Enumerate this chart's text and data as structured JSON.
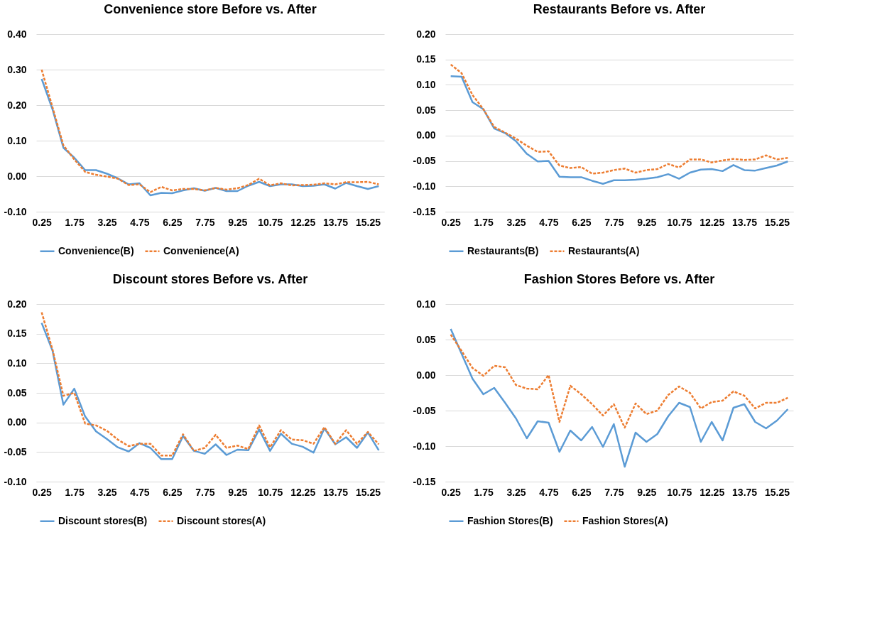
{
  "chart_data": [
    {
      "type": "line",
      "title": "Convenience store Before vs. After",
      "categories": [
        "0.25",
        null,
        null,
        "1.75",
        null,
        null,
        "3.25",
        null,
        null,
        "4.75",
        null,
        null,
        "6.25",
        null,
        null,
        "7.75",
        null,
        null,
        "9.25",
        null,
        null,
        "10.75",
        null,
        null,
        "12.25",
        null,
        null,
        "13.75",
        null,
        null,
        "15.25",
        null
      ],
      "ylim": [
        -0.1,
        0.4
      ],
      "yticks": [
        {
          "value": -0.1,
          "label": "-0.10"
        },
        {
          "value": 0,
          "label": "0.00"
        },
        {
          "value": 0.1,
          "label": "0.10"
        },
        {
          "value": 0.2,
          "label": "0.20"
        },
        {
          "value": 0.3,
          "label": "0.30"
        },
        {
          "value": 0.4,
          "label": "0.40"
        }
      ],
      "grid": "y",
      "legend": "bottom",
      "marker": "none",
      "series": [
        {
          "name": "Convenience(B)",
          "color": "#5b9bd5",
          "line_style": "solid",
          "values": [
            0.274,
            0.188,
            0.08,
            0.052,
            0.017,
            0.017,
            0.007,
            -0.006,
            -0.023,
            -0.02,
            -0.054,
            -0.047,
            -0.048,
            -0.04,
            -0.034,
            -0.041,
            -0.033,
            -0.042,
            -0.042,
            -0.027,
            -0.016,
            -0.028,
            -0.023,
            -0.023,
            -0.028,
            -0.027,
            -0.023,
            -0.035,
            -0.019,
            -0.028,
            -0.036,
            -0.028
          ]
        },
        {
          "name": "Convenience(A)",
          "color": "#ed7d31",
          "line_style": "dashed",
          "values": [
            0.3,
            0.194,
            0.087,
            0.047,
            0.012,
            0.004,
            -0.001,
            -0.007,
            -0.025,
            -0.023,
            -0.045,
            -0.03,
            -0.04,
            -0.036,
            -0.036,
            -0.04,
            -0.033,
            -0.038,
            -0.034,
            -0.025,
            -0.007,
            -0.026,
            -0.02,
            -0.026,
            -0.025,
            -0.024,
            -0.02,
            -0.023,
            -0.017,
            -0.017,
            -0.016,
            -0.023
          ]
        }
      ]
    },
    {
      "type": "line",
      "title": "Restaurants Before vs. After",
      "categories": [
        "0.25",
        null,
        null,
        "1.75",
        null,
        null,
        "3.25",
        null,
        null,
        "4.75",
        null,
        null,
        "6.25",
        null,
        null,
        "7.75",
        null,
        null,
        "9.25",
        null,
        null,
        "10.75",
        null,
        null,
        "12.25",
        null,
        null,
        "13.75",
        null,
        null,
        "15.25",
        null
      ],
      "ylim": [
        -0.15,
        0.2
      ],
      "yticks": [
        {
          "value": -0.15,
          "label": "-0.15"
        },
        {
          "value": -0.1,
          "label": "-0.10"
        },
        {
          "value": -0.05,
          "label": "-0.05"
        },
        {
          "value": 0,
          "label": "0.00"
        },
        {
          "value": 0.05,
          "label": "0.05"
        },
        {
          "value": 0.1,
          "label": "0.10"
        },
        {
          "value": 0.15,
          "label": "0.15"
        },
        {
          "value": 0.2,
          "label": "0.20"
        }
      ],
      "grid": "y",
      "legend": "bottom",
      "marker": "none",
      "series": [
        {
          "name": "Restaurants(B)",
          "color": "#5b9bd5",
          "line_style": "solid",
          "values": [
            0.117,
            0.116,
            0.066,
            0.052,
            0.014,
            0.005,
            -0.011,
            -0.036,
            -0.051,
            -0.05,
            -0.081,
            -0.082,
            -0.082,
            -0.089,
            -0.095,
            -0.088,
            -0.088,
            -0.087,
            -0.085,
            -0.082,
            -0.076,
            -0.085,
            -0.073,
            -0.067,
            -0.066,
            -0.07,
            -0.058,
            -0.068,
            -0.069,
            -0.064,
            -0.059,
            -0.051
          ]
        },
        {
          "name": "Restaurants(A)",
          "color": "#ed7d31",
          "line_style": "dashed",
          "values": [
            0.14,
            0.123,
            0.08,
            0.052,
            0.017,
            0.006,
            -0.006,
            -0.02,
            -0.032,
            -0.031,
            -0.059,
            -0.064,
            -0.062,
            -0.075,
            -0.073,
            -0.068,
            -0.065,
            -0.073,
            -0.068,
            -0.066,
            -0.056,
            -0.063,
            -0.047,
            -0.047,
            -0.053,
            -0.049,
            -0.046,
            -0.048,
            -0.047,
            -0.039,
            -0.047,
            -0.044
          ]
        }
      ]
    },
    {
      "type": "line",
      "title": "Discount stores Before vs. After",
      "categories": [
        "0.25",
        null,
        null,
        "1.75",
        null,
        null,
        "3.25",
        null,
        null,
        "4.75",
        null,
        null,
        "6.25",
        null,
        null,
        "7.75",
        null,
        null,
        "9.25",
        null,
        null,
        "10.75",
        null,
        null,
        "12.25",
        null,
        null,
        "13.75",
        null,
        null,
        "15.25",
        null
      ],
      "ylim": [
        -0.1,
        0.2
      ],
      "yticks": [
        {
          "value": -0.1,
          "label": "-0.10"
        },
        {
          "value": -0.05,
          "label": "-0.05"
        },
        {
          "value": 0,
          "label": "0.00"
        },
        {
          "value": 0.05,
          "label": "0.05"
        },
        {
          "value": 0.1,
          "label": "0.10"
        },
        {
          "value": 0.15,
          "label": "0.15"
        },
        {
          "value": 0.2,
          "label": "0.20"
        }
      ],
      "grid": "y",
      "legend": "bottom",
      "marker": "none",
      "series": [
        {
          "name": "Discount stores(B)",
          "color": "#5b9bd5",
          "line_style": "solid",
          "values": [
            0.168,
            0.121,
            0.03,
            0.057,
            0.01,
            -0.015,
            -0.028,
            -0.042,
            -0.049,
            -0.035,
            -0.043,
            -0.062,
            -0.062,
            -0.023,
            -0.048,
            -0.053,
            -0.037,
            -0.055,
            -0.046,
            -0.047,
            -0.012,
            -0.048,
            -0.019,
            -0.036,
            -0.041,
            -0.051,
            -0.01,
            -0.037,
            -0.025,
            -0.043,
            -0.017,
            -0.047
          ]
        },
        {
          "name": "Discount stores(A)",
          "color": "#ed7d31",
          "line_style": "dashed",
          "values": [
            0.186,
            0.123,
            0.045,
            0.05,
            -0.002,
            -0.005,
            -0.014,
            -0.029,
            -0.04,
            -0.036,
            -0.036,
            -0.056,
            -0.056,
            -0.02,
            -0.048,
            -0.043,
            -0.021,
            -0.043,
            -0.039,
            -0.045,
            -0.005,
            -0.042,
            -0.013,
            -0.029,
            -0.03,
            -0.036,
            -0.008,
            -0.036,
            -0.013,
            -0.036,
            -0.016,
            -0.037
          ]
        }
      ]
    },
    {
      "type": "line",
      "title": "Fashion Stores Before vs. After",
      "categories": [
        "0.25",
        null,
        null,
        "1.75",
        null,
        null,
        "3.25",
        null,
        null,
        "4.75",
        null,
        null,
        "6.25",
        null,
        null,
        "7.75",
        null,
        null,
        "9.25",
        null,
        null,
        "10.75",
        null,
        null,
        "12.25",
        null,
        null,
        "13.75",
        null,
        null,
        "15.25",
        null
      ],
      "ylim": [
        -0.15,
        0.1
      ],
      "yticks": [
        {
          "value": -0.15,
          "label": "-0.15"
        },
        {
          "value": -0.1,
          "label": "-0.10"
        },
        {
          "value": -0.05,
          "label": "-0.05"
        },
        {
          "value": 0,
          "label": "0.00"
        },
        {
          "value": 0.05,
          "label": "0.05"
        },
        {
          "value": 0.1,
          "label": "0.10"
        }
      ],
      "grid": "y",
      "legend": "bottom",
      "marker": "none",
      "series": [
        {
          "name": "Fashion Stores(B)",
          "color": "#5b9bd5",
          "line_style": "solid",
          "values": [
            0.065,
            0.03,
            -0.005,
            -0.027,
            -0.018,
            -0.039,
            -0.061,
            -0.089,
            -0.065,
            -0.067,
            -0.108,
            -0.078,
            -0.092,
            -0.073,
            -0.101,
            -0.069,
            -0.129,
            -0.081,
            -0.094,
            -0.083,
            -0.058,
            -0.039,
            -0.045,
            -0.094,
            -0.066,
            -0.092,
            -0.046,
            -0.041,
            -0.066,
            -0.075,
            -0.064,
            -0.048
          ]
        },
        {
          "name": "Fashion Stores(A)",
          "color": "#ed7d31",
          "line_style": "dashed",
          "values": [
            0.057,
            0.034,
            0.01,
            -0.001,
            0.013,
            0.011,
            -0.014,
            -0.019,
            -0.02,
            0.0,
            -0.066,
            -0.015,
            -0.027,
            -0.041,
            -0.057,
            -0.041,
            -0.074,
            -0.04,
            -0.055,
            -0.05,
            -0.028,
            -0.016,
            -0.025,
            -0.047,
            -0.038,
            -0.036,
            -0.023,
            -0.029,
            -0.047,
            -0.039,
            -0.039,
            -0.032
          ]
        }
      ]
    }
  ]
}
